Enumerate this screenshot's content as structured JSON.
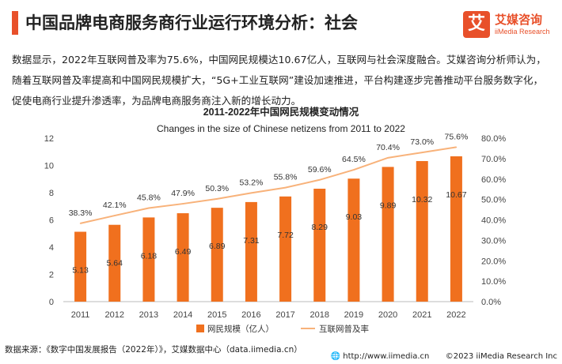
{
  "header": {
    "title": "中国品牌电商服务商行业运行环境分析：社会",
    "logo_cn": "艾媒咨询",
    "logo_en": "iiMedia Research",
    "logo_mark": "艾"
  },
  "paragraph": "数据显示，2022年互联网普及率为75.6%，中国网民规模达10.67亿人，互联网与社会深度融合。艾媒咨询分析师认为，随着互联网普及率提高和中国网民规模扩大，“5G+工业互联网”建设加速推进，平台构建逐步完善推动平台服务数字化，促使电商行业提升渗透率，为品牌电商服务商注入新的增长动力。",
  "chart_data": {
    "type": "bar",
    "title": "2011-2022年中国网民规模变动情况",
    "subtitle": "Changes in the size of Chinese netizens from 2011 to 2022",
    "categories": [
      "2011",
      "2012",
      "2013",
      "2014",
      "2015",
      "2016",
      "2017",
      "2018",
      "2019",
      "2020",
      "2021",
      "2022"
    ],
    "series": [
      {
        "name": "网民规模（亿人）",
        "type": "bar",
        "axis": "left",
        "values": [
          5.13,
          5.64,
          6.18,
          6.49,
          6.89,
          7.31,
          7.72,
          8.29,
          9.03,
          9.89,
          10.32,
          10.67
        ],
        "labels": [
          "5.13",
          "5.64",
          "6.18",
          "6.49",
          "6.89",
          "7.31",
          "7.72",
          "8.29",
          "9.03",
          "9.89",
          "10.32",
          "10.67"
        ]
      },
      {
        "name": "互联网普及率",
        "type": "line",
        "axis": "right",
        "values": [
          38.3,
          42.1,
          45.8,
          47.9,
          50.3,
          53.2,
          55.8,
          59.6,
          64.5,
          70.4,
          73.0,
          75.6
        ],
        "labels": [
          "38.3%",
          "42.1%",
          "45.8%",
          "47.9%",
          "50.3%",
          "53.2%",
          "55.8%",
          "59.6%",
          "64.5%",
          "70.4%",
          "73.0%",
          "75.6%"
        ]
      }
    ],
    "ylim_left": [
      0,
      12
    ],
    "yticks_left": [
      "0",
      "2",
      "4",
      "6",
      "8",
      "10",
      "12"
    ],
    "ylim_right": [
      0,
      80
    ],
    "yticks_right": [
      "0.0%",
      "10.0%",
      "20.0%",
      "30.0%",
      "40.0%",
      "50.0%",
      "60.0%",
      "70.0%",
      "80.0%"
    ],
    "colors": {
      "bar": "#f0701e",
      "line": "#f8b27a"
    },
    "legend": "bottom-center",
    "grid": false
  },
  "footer": {
    "source": "数据来源：《数字中国发展报告（2022年）》，艾媒数据中心（data.iimedia.cn）",
    "site": "http://www.iimedia.cn",
    "copyright": "©2023  iiMedia Research  Inc"
  }
}
